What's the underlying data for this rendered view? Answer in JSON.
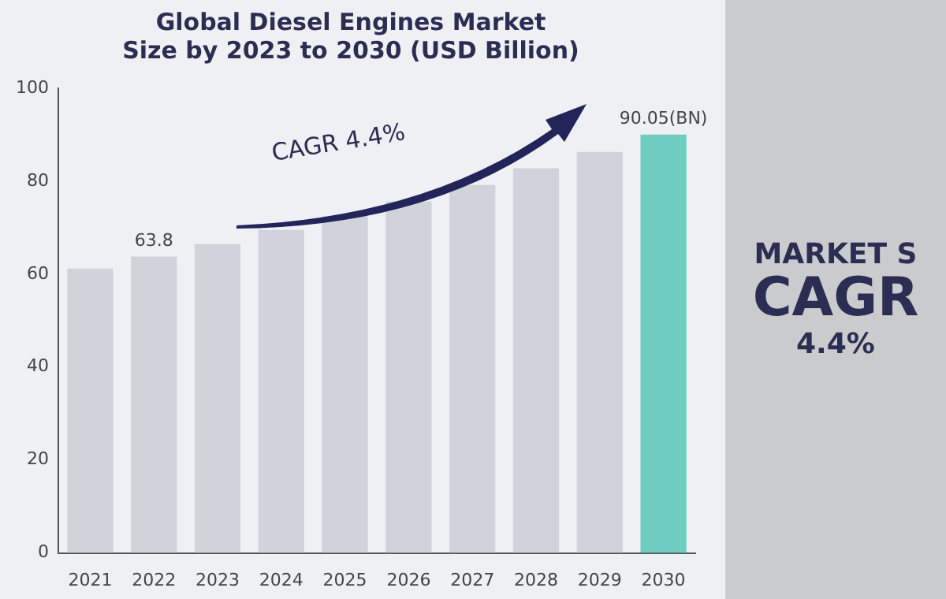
{
  "chart_data": {
    "type": "bar",
    "title": [
      "Global Diesel Engines Market",
      "Size by 2023 to 2030 (USD Billion)"
    ],
    "categories": [
      "2021",
      "2022",
      "2023",
      "2024",
      "2025",
      "2026",
      "2027",
      "2028",
      "2029",
      "2030"
    ],
    "values": [
      61.2,
      63.8,
      66.5,
      69.5,
      72.5,
      75.6,
      79.2,
      82.8,
      86.3,
      90.05
    ],
    "value_labels": [
      null,
      "63.8",
      null,
      null,
      null,
      null,
      null,
      null,
      null,
      "90.05(BN)"
    ],
    "colors": [
      "#d0d4da",
      "#d0d4da",
      "#d0d4da",
      "#d0d4da",
      "#d0d4da",
      "#d0d4da",
      "#d0d4da",
      "#d0d4da",
      "#d0d4da",
      "#6ecdc0"
    ],
    "ylim": [
      0,
      100
    ],
    "yticks": [
      0,
      20,
      40,
      60,
      80,
      100
    ],
    "grid": false,
    "legend": false,
    "annotations": [
      "CAGR 4.4%",
      "MARKET S",
      "CAGR",
      "4.4%"
    ]
  }
}
